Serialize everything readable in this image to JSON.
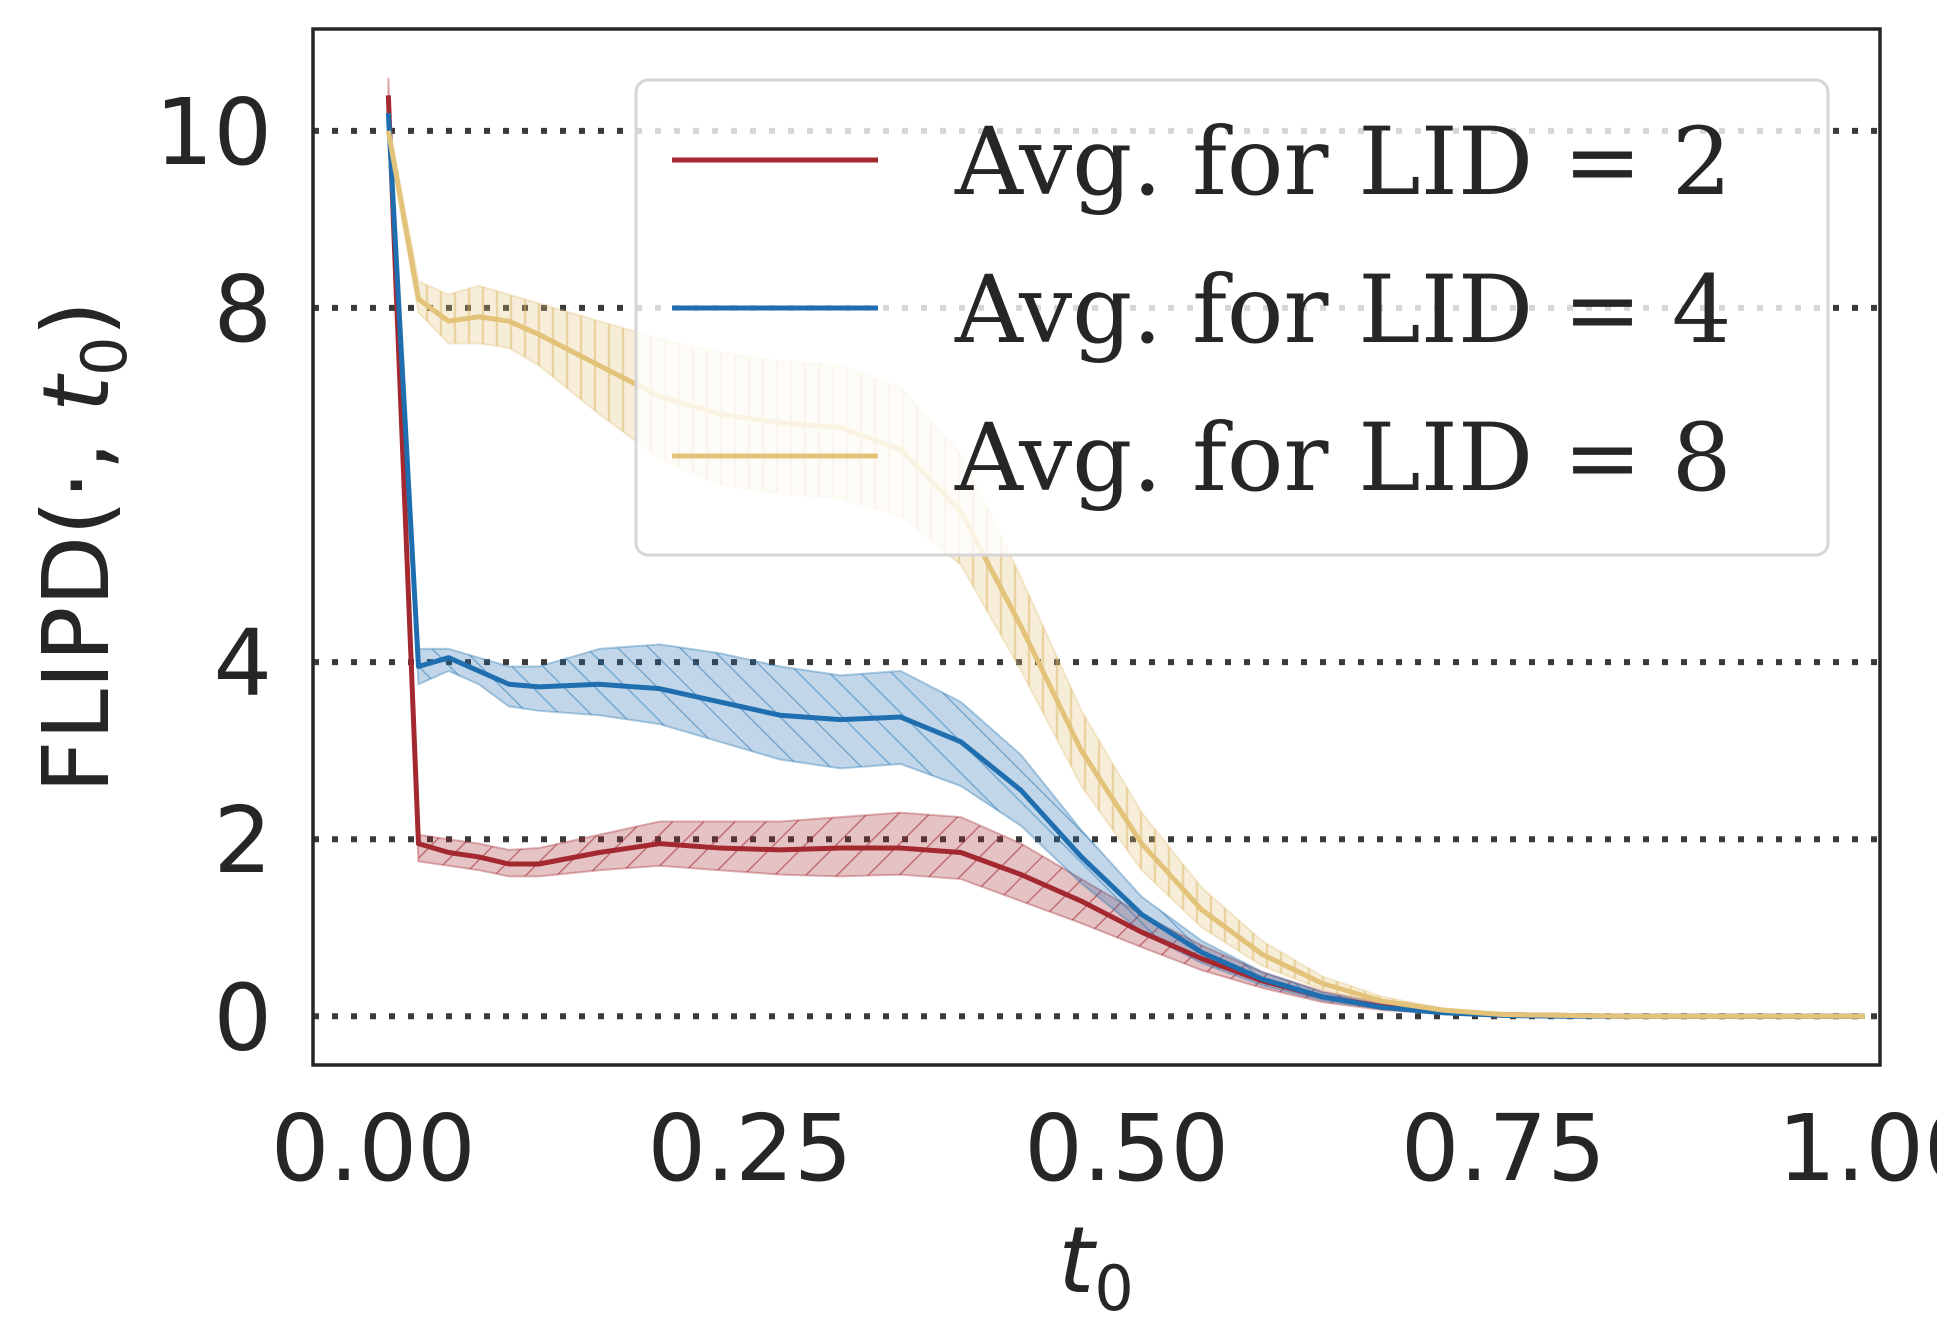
{
  "chart_data": {
    "type": "line",
    "title": "",
    "xlabel_main": "t",
    "xlabel_sub": "0",
    "ylabel_prefix": "FLIPD(·, ",
    "ylabel_var": "t",
    "ylabel_sub": "0",
    "ylabel_suffix": ")",
    "xlim": [
      -0.04,
      1.0
    ],
    "ylim": [
      -0.55,
      11.15
    ],
    "x_ticks": [
      0.0,
      0.25,
      0.5,
      0.75,
      1.0
    ],
    "x_tick_labels": [
      "0.00",
      "0.25",
      "0.50",
      "0.75",
      "1.00"
    ],
    "y_ticks": [
      0,
      2,
      4,
      8,
      10
    ],
    "y_tick_labels": [
      "0",
      "2",
      "4",
      "8",
      "10"
    ],
    "reference_lines_y": [
      0,
      2,
      4,
      8,
      10
    ],
    "grid": false,
    "legend_position": "top-right",
    "x": [
      0.01,
      0.03,
      0.05,
      0.07,
      0.09,
      0.11,
      0.15,
      0.19,
      0.23,
      0.27,
      0.31,
      0.35,
      0.39,
      0.43,
      0.47,
      0.51,
      0.55,
      0.59,
      0.63,
      0.67,
      0.71,
      0.75,
      0.79,
      0.83,
      0.87,
      0.91,
      0.95,
      0.99
    ],
    "series": [
      {
        "name": "Avg. for LID = 2",
        "color": "#a3282f",
        "hatch": "diagonal-forward",
        "values": [
          10.4,
          1.95,
          1.85,
          1.8,
          1.72,
          1.72,
          1.85,
          1.95,
          1.9,
          1.88,
          1.9,
          1.9,
          1.85,
          1.6,
          1.3,
          0.95,
          0.65,
          0.4,
          0.22,
          0.11,
          0.05,
          0.02,
          0.01,
          0.0,
          0.0,
          0.0,
          0.0,
          0.0
        ],
        "lower": [
          10.3,
          1.75,
          1.7,
          1.65,
          1.58,
          1.58,
          1.65,
          1.7,
          1.65,
          1.6,
          1.58,
          1.6,
          1.55,
          1.3,
          1.05,
          0.78,
          0.52,
          0.32,
          0.16,
          0.07,
          0.03,
          0.01,
          0.0,
          0.0,
          0.0,
          0.0,
          0.0,
          0.0
        ],
        "upper": [
          10.6,
          2.05,
          2.0,
          1.95,
          1.88,
          1.9,
          2.05,
          2.2,
          2.2,
          2.2,
          2.25,
          2.3,
          2.25,
          1.95,
          1.55,
          1.15,
          0.8,
          0.5,
          0.28,
          0.15,
          0.07,
          0.03,
          0.01,
          0.0,
          0.0,
          0.0,
          0.0,
          0.0
        ]
      },
      {
        "name": "Avg. for LID = 4",
        "color": "#1f6fb0",
        "hatch": "diagonal-backward",
        "values": [
          10.2,
          3.95,
          4.05,
          3.9,
          3.75,
          3.72,
          3.75,
          3.7,
          3.55,
          3.4,
          3.35,
          3.38,
          3.1,
          2.55,
          1.8,
          1.15,
          0.72,
          0.42,
          0.22,
          0.1,
          0.04,
          0.01,
          0.0,
          0.0,
          0.0,
          0.0,
          0.0,
          0.0
        ],
        "lower": [
          10.1,
          3.75,
          3.9,
          3.75,
          3.5,
          3.45,
          3.4,
          3.3,
          3.1,
          2.9,
          2.8,
          2.85,
          2.6,
          2.15,
          1.5,
          0.95,
          0.6,
          0.35,
          0.18,
          0.08,
          0.03,
          0.01,
          0.0,
          0.0,
          0.0,
          0.0,
          0.0,
          0.0
        ],
        "upper": [
          10.3,
          4.15,
          4.15,
          4.05,
          3.95,
          3.95,
          4.15,
          4.2,
          4.1,
          3.95,
          3.85,
          3.9,
          3.55,
          2.95,
          2.1,
          1.35,
          0.85,
          0.5,
          0.27,
          0.13,
          0.05,
          0.02,
          0.01,
          0.0,
          0.0,
          0.0,
          0.0,
          0.0
        ]
      },
      {
        "name": "Avg. for LID = 8",
        "color": "#e3c27a",
        "hatch": "vertical",
        "values": [
          10.0,
          8.1,
          7.85,
          7.9,
          7.85,
          7.7,
          7.35,
          7.0,
          6.8,
          6.7,
          6.65,
          6.4,
          5.7,
          4.4,
          3.0,
          1.95,
          1.2,
          0.7,
          0.37,
          0.17,
          0.07,
          0.02,
          0.01,
          0.0,
          0.0,
          0.0,
          0.0,
          0.0
        ],
        "lower": [
          9.9,
          7.95,
          7.6,
          7.6,
          7.55,
          7.35,
          6.8,
          6.3,
          6.0,
          5.9,
          5.85,
          5.65,
          5.1,
          3.9,
          2.6,
          1.65,
          1.0,
          0.57,
          0.3,
          0.13,
          0.05,
          0.02,
          0.0,
          0.0,
          0.0,
          0.0,
          0.0,
          0.0
        ],
        "upper": [
          10.1,
          8.3,
          8.15,
          8.25,
          8.15,
          8.05,
          7.85,
          7.65,
          7.5,
          7.4,
          7.35,
          7.1,
          6.35,
          4.95,
          3.45,
          2.3,
          1.45,
          0.85,
          0.45,
          0.22,
          0.09,
          0.03,
          0.01,
          0.0,
          0.0,
          0.0,
          0.0,
          0.0
        ]
      }
    ]
  }
}
